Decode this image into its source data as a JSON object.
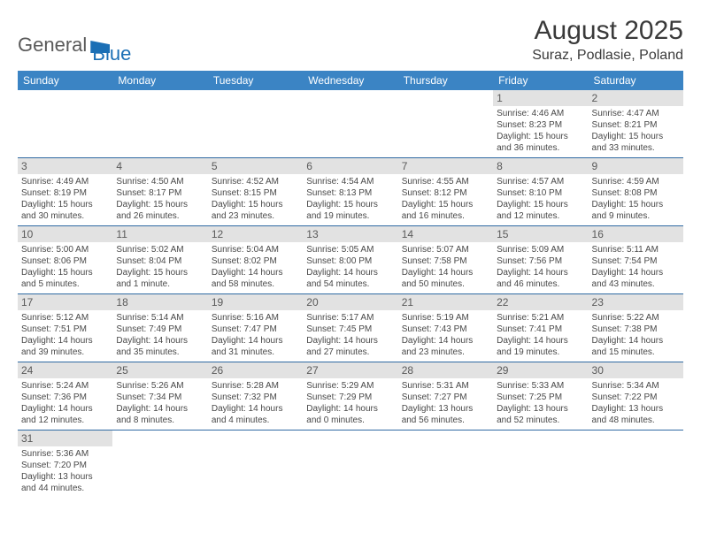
{
  "logo": {
    "part1": "General",
    "part2": "Blue"
  },
  "title": "August 2025",
  "subtitle": "Suraz, Podlasie, Poland",
  "colors": {
    "header_bg": "#3b84c4",
    "header_text": "#ffffff",
    "daynum_bg": "#e2e2e2",
    "daynum_text": "#595959",
    "cell_border": "#2f6aa3",
    "body_text": "#484848",
    "logo_blue": "#1b6fb5"
  },
  "fontsize": {
    "title": 30,
    "subtitle": 16,
    "weekday": 12,
    "daynum": 12,
    "body": 10
  },
  "weekdays": [
    "Sunday",
    "Monday",
    "Tuesday",
    "Wednesday",
    "Thursday",
    "Friday",
    "Saturday"
  ],
  "days": {
    "1": {
      "sunrise": "Sunrise: 4:46 AM",
      "sunset": "Sunset: 8:23 PM",
      "day1": "Daylight: 15 hours",
      "day2": "and 36 minutes."
    },
    "2": {
      "sunrise": "Sunrise: 4:47 AM",
      "sunset": "Sunset: 8:21 PM",
      "day1": "Daylight: 15 hours",
      "day2": "and 33 minutes."
    },
    "3": {
      "sunrise": "Sunrise: 4:49 AM",
      "sunset": "Sunset: 8:19 PM",
      "day1": "Daylight: 15 hours",
      "day2": "and 30 minutes."
    },
    "4": {
      "sunrise": "Sunrise: 4:50 AM",
      "sunset": "Sunset: 8:17 PM",
      "day1": "Daylight: 15 hours",
      "day2": "and 26 minutes."
    },
    "5": {
      "sunrise": "Sunrise: 4:52 AM",
      "sunset": "Sunset: 8:15 PM",
      "day1": "Daylight: 15 hours",
      "day2": "and 23 minutes."
    },
    "6": {
      "sunrise": "Sunrise: 4:54 AM",
      "sunset": "Sunset: 8:13 PM",
      "day1": "Daylight: 15 hours",
      "day2": "and 19 minutes."
    },
    "7": {
      "sunrise": "Sunrise: 4:55 AM",
      "sunset": "Sunset: 8:12 PM",
      "day1": "Daylight: 15 hours",
      "day2": "and 16 minutes."
    },
    "8": {
      "sunrise": "Sunrise: 4:57 AM",
      "sunset": "Sunset: 8:10 PM",
      "day1": "Daylight: 15 hours",
      "day2": "and 12 minutes."
    },
    "9": {
      "sunrise": "Sunrise: 4:59 AM",
      "sunset": "Sunset: 8:08 PM",
      "day1": "Daylight: 15 hours",
      "day2": "and 9 minutes."
    },
    "10": {
      "sunrise": "Sunrise: 5:00 AM",
      "sunset": "Sunset: 8:06 PM",
      "day1": "Daylight: 15 hours",
      "day2": "and 5 minutes."
    },
    "11": {
      "sunrise": "Sunrise: 5:02 AM",
      "sunset": "Sunset: 8:04 PM",
      "day1": "Daylight: 15 hours",
      "day2": "and 1 minute."
    },
    "12": {
      "sunrise": "Sunrise: 5:04 AM",
      "sunset": "Sunset: 8:02 PM",
      "day1": "Daylight: 14 hours",
      "day2": "and 58 minutes."
    },
    "13": {
      "sunrise": "Sunrise: 5:05 AM",
      "sunset": "Sunset: 8:00 PM",
      "day1": "Daylight: 14 hours",
      "day2": "and 54 minutes."
    },
    "14": {
      "sunrise": "Sunrise: 5:07 AM",
      "sunset": "Sunset: 7:58 PM",
      "day1": "Daylight: 14 hours",
      "day2": "and 50 minutes."
    },
    "15": {
      "sunrise": "Sunrise: 5:09 AM",
      "sunset": "Sunset: 7:56 PM",
      "day1": "Daylight: 14 hours",
      "day2": "and 46 minutes."
    },
    "16": {
      "sunrise": "Sunrise: 5:11 AM",
      "sunset": "Sunset: 7:54 PM",
      "day1": "Daylight: 14 hours",
      "day2": "and 43 minutes."
    },
    "17": {
      "sunrise": "Sunrise: 5:12 AM",
      "sunset": "Sunset: 7:51 PM",
      "day1": "Daylight: 14 hours",
      "day2": "and 39 minutes."
    },
    "18": {
      "sunrise": "Sunrise: 5:14 AM",
      "sunset": "Sunset: 7:49 PM",
      "day1": "Daylight: 14 hours",
      "day2": "and 35 minutes."
    },
    "19": {
      "sunrise": "Sunrise: 5:16 AM",
      "sunset": "Sunset: 7:47 PM",
      "day1": "Daylight: 14 hours",
      "day2": "and 31 minutes."
    },
    "20": {
      "sunrise": "Sunrise: 5:17 AM",
      "sunset": "Sunset: 7:45 PM",
      "day1": "Daylight: 14 hours",
      "day2": "and 27 minutes."
    },
    "21": {
      "sunrise": "Sunrise: 5:19 AM",
      "sunset": "Sunset: 7:43 PM",
      "day1": "Daylight: 14 hours",
      "day2": "and 23 minutes."
    },
    "22": {
      "sunrise": "Sunrise: 5:21 AM",
      "sunset": "Sunset: 7:41 PM",
      "day1": "Daylight: 14 hours",
      "day2": "and 19 minutes."
    },
    "23": {
      "sunrise": "Sunrise: 5:22 AM",
      "sunset": "Sunset: 7:38 PM",
      "day1": "Daylight: 14 hours",
      "day2": "and 15 minutes."
    },
    "24": {
      "sunrise": "Sunrise: 5:24 AM",
      "sunset": "Sunset: 7:36 PM",
      "day1": "Daylight: 14 hours",
      "day2": "and 12 minutes."
    },
    "25": {
      "sunrise": "Sunrise: 5:26 AM",
      "sunset": "Sunset: 7:34 PM",
      "day1": "Daylight: 14 hours",
      "day2": "and 8 minutes."
    },
    "26": {
      "sunrise": "Sunrise: 5:28 AM",
      "sunset": "Sunset: 7:32 PM",
      "day1": "Daylight: 14 hours",
      "day2": "and 4 minutes."
    },
    "27": {
      "sunrise": "Sunrise: 5:29 AM",
      "sunset": "Sunset: 7:29 PM",
      "day1": "Daylight: 14 hours",
      "day2": "and 0 minutes."
    },
    "28": {
      "sunrise": "Sunrise: 5:31 AM",
      "sunset": "Sunset: 7:27 PM",
      "day1": "Daylight: 13 hours",
      "day2": "and 56 minutes."
    },
    "29": {
      "sunrise": "Sunrise: 5:33 AM",
      "sunset": "Sunset: 7:25 PM",
      "day1": "Daylight: 13 hours",
      "day2": "and 52 minutes."
    },
    "30": {
      "sunrise": "Sunrise: 5:34 AM",
      "sunset": "Sunset: 7:22 PM",
      "day1": "Daylight: 13 hours",
      "day2": "and 48 minutes."
    },
    "31": {
      "sunrise": "Sunrise: 5:36 AM",
      "sunset": "Sunset: 7:20 PM",
      "day1": "Daylight: 13 hours",
      "day2": "and 44 minutes."
    }
  },
  "grid": [
    [
      null,
      null,
      null,
      null,
      null,
      "1",
      "2"
    ],
    [
      "3",
      "4",
      "5",
      "6",
      "7",
      "8",
      "9"
    ],
    [
      "10",
      "11",
      "12",
      "13",
      "14",
      "15",
      "16"
    ],
    [
      "17",
      "18",
      "19",
      "20",
      "21",
      "22",
      "23"
    ],
    [
      "24",
      "25",
      "26",
      "27",
      "28",
      "29",
      "30"
    ],
    [
      "31",
      null,
      null,
      null,
      null,
      null,
      null
    ]
  ]
}
